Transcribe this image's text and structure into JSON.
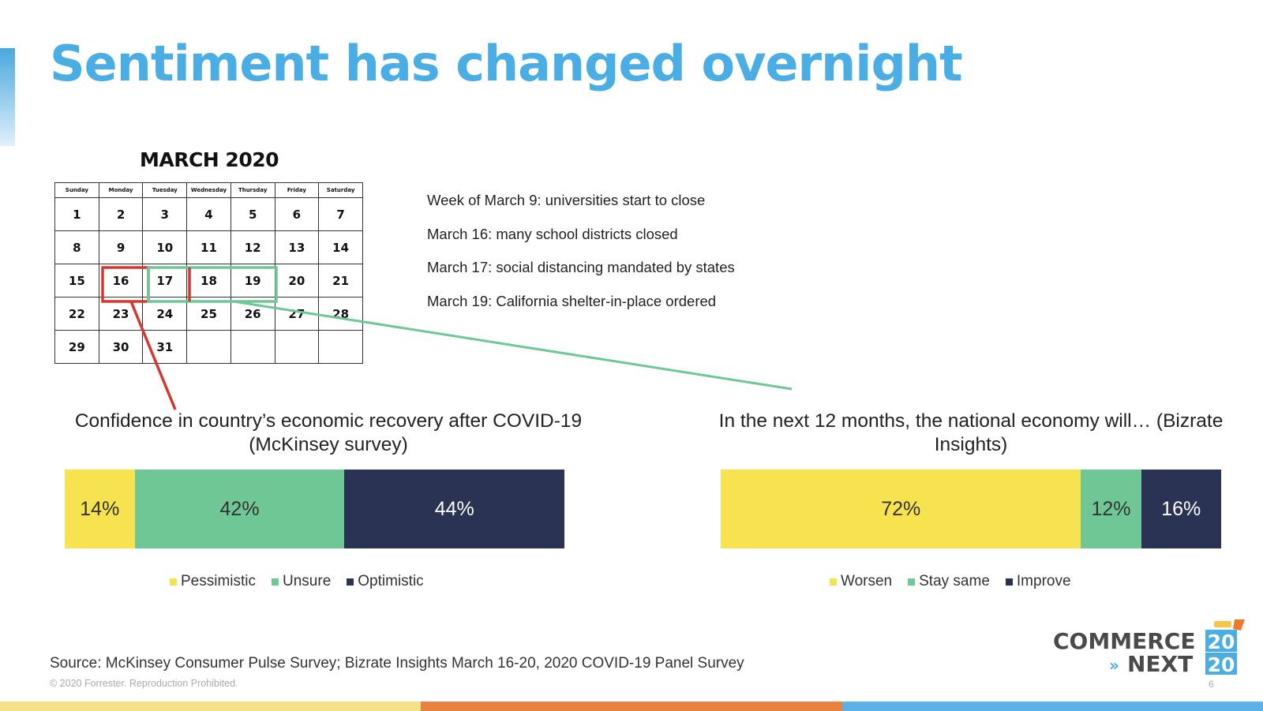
{
  "slide": {
    "title": "Sentiment has changed overnight",
    "source": "Source: McKinsey Consumer Pulse Survey; Bizrate Insights March 16-20, 2020 COVID-19 Panel Survey",
    "copyright": "© 2020 Forrester. Reproduction Prohibited.",
    "page_number": "6",
    "colors": {
      "title": "#4aade4",
      "yellow": "#f7e34f",
      "green": "#6fc796",
      "navy": "#2b3355",
      "red_highlight": "#d6372e",
      "green_highlight": "#6fc796"
    }
  },
  "calendar": {
    "title": "MARCH 2020",
    "days": [
      "Sunday",
      "Monday",
      "Tuesday",
      "Wednesday",
      "Thursday",
      "Friday",
      "Saturday"
    ],
    "weeks": [
      [
        "1",
        "2",
        "3",
        "4",
        "5",
        "6",
        "7"
      ],
      [
        "8",
        "9",
        "10",
        "11",
        "12",
        "13",
        "14"
      ],
      [
        "15",
        "16",
        "17",
        "18",
        "19",
        "20",
        "21"
      ],
      [
        "22",
        "23",
        "24",
        "25",
        "26",
        "27",
        "28"
      ],
      [
        "29",
        "30",
        "31",
        "",
        "",
        "",
        ""
      ]
    ]
  },
  "events": [
    "Week of March 9: universities start to close",
    "March 16: many school districts closed",
    "March 17: social distancing mandated by states",
    "March 19: California shelter-in-place ordered"
  ],
  "logo": {
    "line1": "COMMERCE",
    "line2": "NEXT",
    "year_top": "20",
    "year_bottom": "20"
  },
  "chart_data": [
    {
      "type": "bar",
      "orientation": "horizontal-stacked-100",
      "title": "Confidence in country’s economic recovery after COVID-19 (McKinsey survey)",
      "series": [
        {
          "name": "Pessimistic",
          "values": [
            14
          ],
          "label": "14%",
          "color": "#f7e34f",
          "text_color": "#333333"
        },
        {
          "name": "Unsure",
          "values": [
            42
          ],
          "label": "42%",
          "color": "#6fc796",
          "text_color": "#333333"
        },
        {
          "name": "Optimistic",
          "values": [
            44
          ],
          "label": "44%",
          "color": "#2b3355",
          "text_color": "#ffffff"
        }
      ],
      "legend_position": "bottom",
      "grid": false
    },
    {
      "type": "bar",
      "orientation": "horizontal-stacked-100",
      "title": "In the next 12 months, the national economy will… (Bizrate Insights)",
      "series": [
        {
          "name": "Worsen",
          "values": [
            72
          ],
          "label": "72%",
          "color": "#f7e34f",
          "text_color": "#333333"
        },
        {
          "name": "Stay same",
          "values": [
            12
          ],
          "label": "12%",
          "color": "#6fc796",
          "text_color": "#333333"
        },
        {
          "name": "Improve",
          "values": [
            16
          ],
          "label": "16%",
          "color": "#2b3355",
          "text_color": "#ffffff"
        }
      ],
      "legend_position": "bottom",
      "grid": false
    }
  ]
}
